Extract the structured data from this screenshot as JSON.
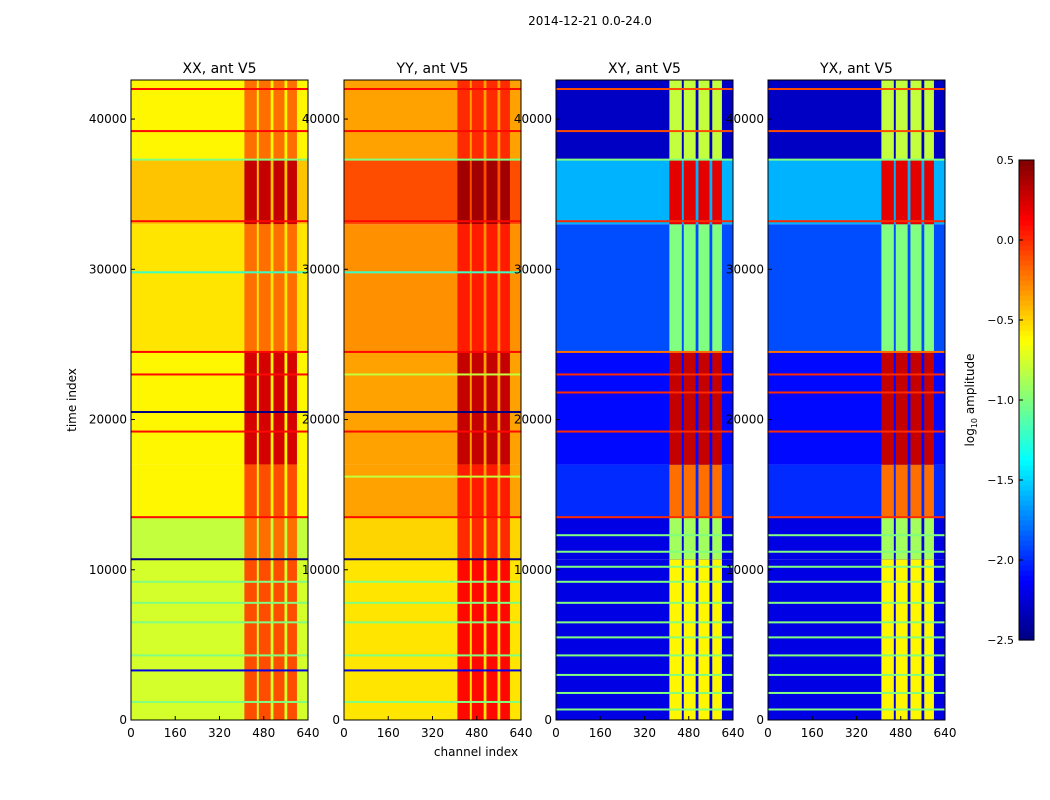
{
  "chart_data": {
    "type": "heatmap",
    "suptitle": "2014-12-21 0.0-24.0",
    "xlabel": "channel index",
    "ylabel": "time index",
    "xlim": [
      0,
      640
    ],
    "ylim": [
      0,
      42600
    ],
    "xticks": [
      "0",
      "160",
      "320",
      "480",
      "640"
    ],
    "xtick_values": [
      0,
      160,
      320,
      480,
      640
    ],
    "yticks": [
      "0",
      "10000",
      "20000",
      "30000",
      "40000"
    ],
    "ytick_values": [
      0,
      10000,
      20000,
      30000,
      40000
    ],
    "colorbar": {
      "label": "log10 amplitude",
      "label_main": "log",
      "label_sub": "10",
      "label_rest": " amplitude",
      "range": [
        -2.5,
        0.5
      ],
      "ticks": [
        "0.5",
        "0.0",
        "−0.5",
        "−1.0",
        "−1.5",
        "−2.0",
        "−2.5"
      ],
      "tick_values": [
        0.5,
        0.0,
        -0.5,
        -1.0,
        -1.5,
        -2.0,
        -2.5
      ],
      "colormap": "jet"
    },
    "rfi_channels": [
      [
        410,
        455
      ],
      [
        462,
        505
      ],
      [
        515,
        555
      ],
      [
        565,
        600
      ]
    ],
    "panels": [
      {
        "title": "XX, ant V5",
        "segments": [
          [
            0,
            10700,
            -0.75,
            -0.1
          ],
          [
            10700,
            13500,
            -0.8,
            -0.2
          ],
          [
            13500,
            17000,
            -0.6,
            -0.1
          ],
          [
            17000,
            24500,
            -0.6,
            0.25
          ],
          [
            24500,
            33000,
            -0.55,
            -0.2
          ],
          [
            33000,
            37300,
            -0.45,
            0.3
          ],
          [
            37300,
            42600,
            -0.6,
            -0.2
          ]
        ],
        "lines": [
          [
            1200,
            -1.0
          ],
          [
            3300,
            -2.2
          ],
          [
            4300,
            -1.0
          ],
          [
            6500,
            -1.0
          ],
          [
            7800,
            -1.0
          ],
          [
            9200,
            -1.0
          ],
          [
            10700,
            -2.5
          ],
          [
            13500,
            0.1
          ],
          [
            19200,
            0.1
          ],
          [
            20500,
            -2.5
          ],
          [
            23000,
            0.1
          ],
          [
            24500,
            0.1
          ],
          [
            29800,
            -1.2
          ],
          [
            33200,
            0.1
          ],
          [
            37300,
            -1.0
          ],
          [
            39200,
            0.1
          ],
          [
            42000,
            0.1
          ]
        ]
      },
      {
        "title": "YY, ant V5",
        "segments": [
          [
            0,
            10700,
            -0.55,
            0.1
          ],
          [
            10700,
            13500,
            -0.5,
            0.0
          ],
          [
            13500,
            17000,
            -0.35,
            0.05
          ],
          [
            17000,
            24500,
            -0.35,
            0.3
          ],
          [
            24500,
            33000,
            -0.3,
            0.05
          ],
          [
            33000,
            37300,
            -0.1,
            0.4
          ],
          [
            37300,
            42600,
            -0.35,
            0.0
          ]
        ],
        "lines": [
          [
            1200,
            -1.0
          ],
          [
            3300,
            -2.2
          ],
          [
            4300,
            -1.0
          ],
          [
            6500,
            -1.0
          ],
          [
            7800,
            -1.0
          ],
          [
            9200,
            -1.0
          ],
          [
            10700,
            -2.5
          ],
          [
            13500,
            0.1
          ],
          [
            16200,
            -0.8
          ],
          [
            19200,
            0.1
          ],
          [
            20500,
            -2.5
          ],
          [
            23000,
            -0.8
          ],
          [
            24500,
            0.1
          ],
          [
            29800,
            -1.2
          ],
          [
            33200,
            0.1
          ],
          [
            37300,
            -1.0
          ],
          [
            39200,
            0.1
          ],
          [
            42000,
            0.1
          ]
        ]
      },
      {
        "title": "XY, ant V5",
        "segments": [
          [
            0,
            10700,
            -2.2,
            -0.6
          ],
          [
            10700,
            13500,
            -2.2,
            -0.9
          ],
          [
            13500,
            17000,
            -2.0,
            -0.2
          ],
          [
            17000,
            24500,
            -2.1,
            0.3
          ],
          [
            24500,
            33000,
            -1.9,
            -1.0
          ],
          [
            33000,
            37300,
            -1.6,
            0.2
          ],
          [
            37300,
            42600,
            -2.3,
            -0.8
          ]
        ],
        "lines": [
          [
            700,
            -1.0
          ],
          [
            1800,
            -1.0
          ],
          [
            3000,
            -1.0
          ],
          [
            4300,
            -1.0
          ],
          [
            5500,
            -1.0
          ],
          [
            6500,
            -1.0
          ],
          [
            7800,
            -1.0
          ],
          [
            9200,
            -1.0
          ],
          [
            10200,
            -1.0
          ],
          [
            11200,
            -1.0
          ],
          [
            12300,
            -1.0
          ],
          [
            13500,
            0.0
          ],
          [
            19200,
            0.0
          ],
          [
            21800,
            0.0
          ],
          [
            23000,
            0.0
          ],
          [
            24500,
            -0.2
          ],
          [
            33200,
            0.0
          ],
          [
            37300,
            -1.0
          ],
          [
            39200,
            -0.1
          ],
          [
            42000,
            -0.1
          ]
        ]
      },
      {
        "title": "YX, ant V5",
        "segments": [
          [
            0,
            10700,
            -2.2,
            -0.6
          ],
          [
            10700,
            13500,
            -2.2,
            -0.9
          ],
          [
            13500,
            17000,
            -2.0,
            -0.2
          ],
          [
            17000,
            24500,
            -2.1,
            0.3
          ],
          [
            24500,
            33000,
            -1.9,
            -1.0
          ],
          [
            33000,
            37300,
            -1.6,
            0.2
          ],
          [
            37300,
            42600,
            -2.3,
            -0.8
          ]
        ],
        "lines": [
          [
            700,
            -1.0
          ],
          [
            1800,
            -1.0
          ],
          [
            3000,
            -1.0
          ],
          [
            4300,
            -1.0
          ],
          [
            5500,
            -1.0
          ],
          [
            6500,
            -1.0
          ],
          [
            7800,
            -1.0
          ],
          [
            9200,
            -1.0
          ],
          [
            10200,
            -1.0
          ],
          [
            11200,
            -1.0
          ],
          [
            12300,
            -1.0
          ],
          [
            13500,
            0.0
          ],
          [
            19200,
            0.0
          ],
          [
            21800,
            0.0
          ],
          [
            23000,
            0.0
          ],
          [
            24500,
            -0.2
          ],
          [
            33200,
            0.0
          ],
          [
            37300,
            -1.0
          ],
          [
            39200,
            -0.1
          ],
          [
            42000,
            -0.1
          ]
        ]
      }
    ]
  }
}
